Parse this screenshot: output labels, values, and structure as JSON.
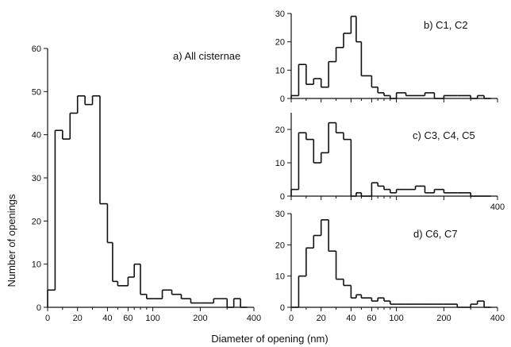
{
  "figure": {
    "xlabel": "Diameter of opening (nm)",
    "ylabel": "Number of openings"
  },
  "chart_data": [
    {
      "type": "bar",
      "panel": "a",
      "title": "a) All cisternae",
      "xlim": [
        0,
        400
      ],
      "ylim": [
        0,
        60
      ],
      "x_ticks": [
        "0",
        "20",
        "40",
        "60",
        "100",
        "200",
        "400"
      ],
      "y_ticks": [
        "0",
        "10",
        "20",
        "30",
        "40",
        "50",
        "60"
      ],
      "bins": [
        {
          "x0": 0,
          "x1": 5,
          "v": 4
        },
        {
          "x0": 5,
          "x1": 10,
          "v": 41
        },
        {
          "x0": 10,
          "x1": 15,
          "v": 39
        },
        {
          "x0": 15,
          "x1": 20,
          "v": 45
        },
        {
          "x0": 20,
          "x1": 25,
          "v": 49
        },
        {
          "x0": 25,
          "x1": 30,
          "v": 47
        },
        {
          "x0": 30,
          "x1": 35,
          "v": 49
        },
        {
          "x0": 35,
          "x1": 40,
          "v": 24
        },
        {
          "x0": 40,
          "x1": 45,
          "v": 15
        },
        {
          "x0": 45,
          "x1": 50,
          "v": 6
        },
        {
          "x0": 50,
          "x1": 60,
          "v": 5
        },
        {
          "x0": 60,
          "x1": 70,
          "v": 7
        },
        {
          "x0": 70,
          "x1": 80,
          "v": 10
        },
        {
          "x0": 80,
          "x1": 90,
          "v": 3
        },
        {
          "x0": 90,
          "x1": 100,
          "v": 2
        },
        {
          "x0": 100,
          "x1": 120,
          "v": 2
        },
        {
          "x0": 120,
          "x1": 140,
          "v": 4
        },
        {
          "x0": 140,
          "x1": 160,
          "v": 3
        },
        {
          "x0": 160,
          "x1": 180,
          "v": 2
        },
        {
          "x0": 180,
          "x1": 200,
          "v": 1
        },
        {
          "x0": 200,
          "x1": 250,
          "v": 1
        },
        {
          "x0": 250,
          "x1": 300,
          "v": 2
        },
        {
          "x0": 300,
          "x1": 325,
          "v": 0
        },
        {
          "x0": 325,
          "x1": 350,
          "v": 2
        },
        {
          "x0": 350,
          "x1": 375,
          "v": 0
        }
      ]
    },
    {
      "type": "bar",
      "panel": "b",
      "title": "b) C1, C2",
      "xlim": [
        0,
        400
      ],
      "ylim": [
        0,
        30
      ],
      "x_ticks": [],
      "y_ticks": [
        "0",
        "10",
        "20",
        "30"
      ],
      "bins": [
        {
          "x0": 0,
          "x1": 5,
          "v": 1
        },
        {
          "x0": 5,
          "x1": 10,
          "v": 12
        },
        {
          "x0": 10,
          "x1": 15,
          "v": 5
        },
        {
          "x0": 15,
          "x1": 20,
          "v": 7
        },
        {
          "x0": 20,
          "x1": 25,
          "v": 4
        },
        {
          "x0": 25,
          "x1": 30,
          "v": 13
        },
        {
          "x0": 30,
          "x1": 35,
          "v": 18
        },
        {
          "x0": 35,
          "x1": 40,
          "v": 23
        },
        {
          "x0": 40,
          "x1": 45,
          "v": 29
        },
        {
          "x0": 45,
          "x1": 50,
          "v": 20
        },
        {
          "x0": 50,
          "x1": 60,
          "v": 8
        },
        {
          "x0": 60,
          "x1": 70,
          "v": 4
        },
        {
          "x0": 70,
          "x1": 80,
          "v": 2
        },
        {
          "x0": 80,
          "x1": 90,
          "v": 1
        },
        {
          "x0": 90,
          "x1": 100,
          "v": 0
        },
        {
          "x0": 100,
          "x1": 120,
          "v": 2
        },
        {
          "x0": 120,
          "x1": 140,
          "v": 1
        },
        {
          "x0": 140,
          "x1": 160,
          "v": 1
        },
        {
          "x0": 160,
          "x1": 180,
          "v": 2
        },
        {
          "x0": 180,
          "x1": 200,
          "v": 0
        },
        {
          "x0": 200,
          "x1": 250,
          "v": 1
        },
        {
          "x0": 250,
          "x1": 300,
          "v": 1
        },
        {
          "x0": 300,
          "x1": 325,
          "v": 0
        },
        {
          "x0": 325,
          "x1": 350,
          "v": 1
        },
        {
          "x0": 350,
          "x1": 375,
          "v": 0
        }
      ]
    },
    {
      "type": "bar",
      "panel": "c",
      "title": "c) C3, C4, C5",
      "xlim": [
        0,
        400
      ],
      "ylim": [
        0,
        25
      ],
      "x_ticks": [
        "400"
      ],
      "y_ticks": [
        "0",
        "10",
        "20"
      ],
      "bins": [
        {
          "x0": 0,
          "x1": 5,
          "v": 2
        },
        {
          "x0": 5,
          "x1": 10,
          "v": 19
        },
        {
          "x0": 10,
          "x1": 15,
          "v": 17
        },
        {
          "x0": 15,
          "x1": 20,
          "v": 10
        },
        {
          "x0": 20,
          "x1": 25,
          "v": 13
        },
        {
          "x0": 25,
          "x1": 30,
          "v": 22
        },
        {
          "x0": 30,
          "x1": 35,
          "v": 19
        },
        {
          "x0": 35,
          "x1": 40,
          "v": 17
        },
        {
          "x0": 40,
          "x1": 45,
          "v": 0
        },
        {
          "x0": 45,
          "x1": 50,
          "v": 1
        },
        {
          "x0": 50,
          "x1": 60,
          "v": 0
        },
        {
          "x0": 60,
          "x1": 70,
          "v": 4
        },
        {
          "x0": 70,
          "x1": 80,
          "v": 3
        },
        {
          "x0": 80,
          "x1": 90,
          "v": 2
        },
        {
          "x0": 90,
          "x1": 100,
          "v": 1
        },
        {
          "x0": 100,
          "x1": 120,
          "v": 2
        },
        {
          "x0": 120,
          "x1": 140,
          "v": 2
        },
        {
          "x0": 140,
          "x1": 160,
          "v": 3
        },
        {
          "x0": 160,
          "x1": 180,
          "v": 1
        },
        {
          "x0": 180,
          "x1": 200,
          "v": 2
        },
        {
          "x0": 200,
          "x1": 250,
          "v": 1
        },
        {
          "x0": 250,
          "x1": 300,
          "v": 1
        },
        {
          "x0": 300,
          "x1": 325,
          "v": 0
        },
        {
          "x0": 325,
          "x1": 350,
          "v": 0
        },
        {
          "x0": 350,
          "x1": 375,
          "v": 0
        }
      ]
    },
    {
      "type": "bar",
      "panel": "d",
      "title": "d) C6, C7",
      "xlim": [
        0,
        400
      ],
      "ylim": [
        0,
        30
      ],
      "x_ticks": [
        "0",
        "20",
        "40",
        "60",
        "100",
        "200",
        "400"
      ],
      "y_ticks": [
        "0",
        "10",
        "20",
        "30"
      ],
      "bins": [
        {
          "x0": 0,
          "x1": 5,
          "v": 0
        },
        {
          "x0": 5,
          "x1": 10,
          "v": 10
        },
        {
          "x0": 10,
          "x1": 15,
          "v": 19
        },
        {
          "x0": 15,
          "x1": 20,
          "v": 23
        },
        {
          "x0": 20,
          "x1": 25,
          "v": 28
        },
        {
          "x0": 25,
          "x1": 30,
          "v": 18
        },
        {
          "x0": 30,
          "x1": 35,
          "v": 9
        },
        {
          "x0": 35,
          "x1": 40,
          "v": 7
        },
        {
          "x0": 40,
          "x1": 45,
          "v": 3
        },
        {
          "x0": 45,
          "x1": 50,
          "v": 4
        },
        {
          "x0": 50,
          "x1": 60,
          "v": 3
        },
        {
          "x0": 60,
          "x1": 70,
          "v": 2
        },
        {
          "x0": 70,
          "x1": 80,
          "v": 3
        },
        {
          "x0": 80,
          "x1": 90,
          "v": 2
        },
        {
          "x0": 90,
          "x1": 100,
          "v": 1
        },
        {
          "x0": 100,
          "x1": 120,
          "v": 1
        },
        {
          "x0": 120,
          "x1": 140,
          "v": 1
        },
        {
          "x0": 140,
          "x1": 160,
          "v": 1
        },
        {
          "x0": 160,
          "x1": 180,
          "v": 1
        },
        {
          "x0": 180,
          "x1": 200,
          "v": 1
        },
        {
          "x0": 200,
          "x1": 250,
          "v": 1
        },
        {
          "x0": 250,
          "x1": 300,
          "v": 0
        },
        {
          "x0": 300,
          "x1": 325,
          "v": 1
        },
        {
          "x0": 325,
          "x1": 350,
          "v": 2
        },
        {
          "x0": 350,
          "x1": 375,
          "v": 0
        }
      ]
    }
  ]
}
